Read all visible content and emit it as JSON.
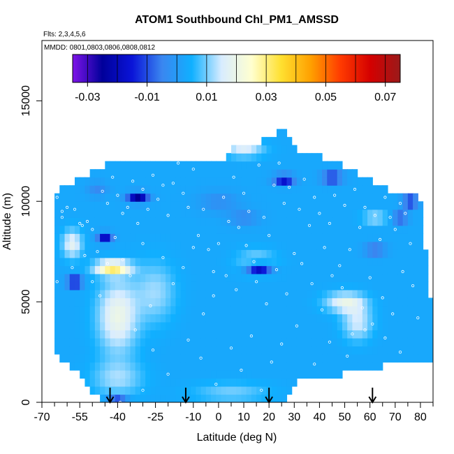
{
  "chart_data": {
    "type": "heatmap",
    "title": "ATOM1 Southbound Chl_PM1_AMSSD",
    "subtitle_flights": "Flts: 2,3,4,5,6",
    "subtitle_dates": "MMDD: 0801,0803,0806,0808,0812",
    "xlabel": "Latitude (deg N)",
    "ylabel": "Altitude (m)",
    "xlim": [
      -70,
      85
    ],
    "ylim": [
      0,
      18000
    ],
    "x_ticks": [
      -70,
      -55,
      -40,
      -25,
      -10,
      0,
      10,
      20,
      30,
      40,
      50,
      60,
      70,
      80
    ],
    "x_tick_labels": [
      "-70",
      "-55",
      "-40",
      "-25",
      "-10",
      "0",
      "10",
      "20",
      "30",
      "40",
      "50",
      "60",
      "70",
      "80"
    ],
    "x_minor_ticks": [
      -65,
      -60,
      -50,
      -45,
      -35,
      -30,
      -20,
      -15,
      -5,
      5,
      15,
      25,
      35,
      45,
      55,
      65,
      75,
      85
    ],
    "y_ticks": [
      0,
      5000,
      10000,
      15000
    ],
    "y_tick_labels": [
      "0",
      "5000",
      "10000",
      "15000"
    ],
    "colorbar": {
      "range": [
        -0.035,
        0.075
      ],
      "tick_values": [
        -0.03,
        -0.01,
        0.01,
        0.03,
        0.05,
        0.07
      ],
      "tick_labels": [
        "-0.03",
        "-0.01",
        "0.01",
        "0.03",
        "0.05",
        "0.07"
      ],
      "segment_boundaries": [
        -0.03,
        -0.02,
        -0.01,
        0.0,
        0.01,
        0.02,
        0.03,
        0.04,
        0.05,
        0.06,
        0.07
      ],
      "colors": [
        "#7e14e8",
        "#00009a",
        "#0a14d8",
        "#3a86f0",
        "#10b0ff",
        "#d8ecff",
        "#ffffd0",
        "#ffe030",
        "#ffa000",
        "#ff3a00",
        "#d40000",
        "#9a1a1a"
      ]
    },
    "background_value": 0.003,
    "column_altitude_extent": [
      {
        "lat": -64,
        "min": 2500,
        "max": 10400
      },
      {
        "lat": -55,
        "min": 1500,
        "max": 11000
      },
      {
        "lat": -45,
        "min": 0,
        "max": 11600
      },
      {
        "lat": -35,
        "min": 0,
        "max": 11900
      },
      {
        "lat": -25,
        "min": 0,
        "max": 12000
      },
      {
        "lat": -15,
        "min": 0,
        "max": 12000
      },
      {
        "lat": -5,
        "min": 0,
        "max": 12000
      },
      {
        "lat": 2,
        "min": 0,
        "max": 12000
      },
      {
        "lat": 5,
        "min": 0,
        "max": 12600
      },
      {
        "lat": 15,
        "min": 0,
        "max": 12600
      },
      {
        "lat": 25,
        "min": 0,
        "max": 13400
      },
      {
        "lat": 32,
        "min": 1500,
        "max": 12400
      },
      {
        "lat": 45,
        "min": 1500,
        "max": 11800
      },
      {
        "lat": 55,
        "min": 1800,
        "max": 11200
      },
      {
        "lat": 65,
        "min": 2000,
        "max": 10500
      },
      {
        "lat": 73,
        "min": 2000,
        "max": 10100
      },
      {
        "lat": 80,
        "min": 2200,
        "max": 10000
      },
      {
        "lat": 84,
        "min": 2200,
        "max": 5000
      }
    ],
    "anomalies": [
      {
        "lat": -40,
        "alt": 4300,
        "slat": 8,
        "salt": 1800,
        "value": 0.02
      },
      {
        "lat": -42,
        "alt": 6700,
        "slat": 7,
        "salt": 350,
        "value": 0.03
      },
      {
        "lat": -58,
        "alt": 7900,
        "slat": 4,
        "salt": 700,
        "value": 0.018
      },
      {
        "lat": -40,
        "alt": 1200,
        "slat": 10,
        "salt": 900,
        "value": 0.012
      },
      {
        "lat": -25,
        "alt": 5500,
        "slat": 8,
        "salt": 1500,
        "value": 0.012
      },
      {
        "lat": 50,
        "alt": 5000,
        "slat": 8,
        "salt": 500,
        "value": 0.018
      },
      {
        "lat": 55,
        "alt": 4000,
        "slat": 6,
        "salt": 900,
        "value": 0.015
      },
      {
        "lat": 62,
        "alt": 9200,
        "slat": 5,
        "salt": 250,
        "value": 0.016
      },
      {
        "lat": 15,
        "alt": 7000,
        "slat": 8,
        "salt": 600,
        "value": 0.012
      },
      {
        "lat": 10,
        "alt": 12600,
        "slat": 8,
        "salt": 400,
        "value": 0.016
      },
      {
        "lat": 5,
        "alt": 500,
        "slat": 15,
        "salt": 500,
        "value": 0.01
      },
      {
        "lat": -57,
        "alt": 6000,
        "slat": 3,
        "salt": 250,
        "value": -0.025
      },
      {
        "lat": -45,
        "alt": 8200,
        "slat": 3,
        "salt": 250,
        "value": -0.02
      },
      {
        "lat": -32,
        "alt": 10200,
        "slat": 4,
        "salt": 250,
        "value": -0.025
      },
      {
        "lat": 16,
        "alt": 6700,
        "slat": 5,
        "salt": 250,
        "value": -0.028
      },
      {
        "lat": -40,
        "alt": 0,
        "slat": 4,
        "salt": 300,
        "value": -0.02
      },
      {
        "lat": 62,
        "alt": 7600,
        "slat": 4,
        "salt": 250,
        "value": -0.012
      },
      {
        "lat": 26,
        "alt": 11100,
        "slat": 4,
        "salt": 250,
        "value": -0.02
      },
      {
        "lat": 45,
        "alt": 11200,
        "slat": 4,
        "salt": 250,
        "value": -0.02
      },
      {
        "lat": 76,
        "alt": 10000,
        "slat": 3,
        "salt": 250,
        "value": -0.02
      },
      {
        "lat": 72,
        "alt": 9200,
        "slat": 3,
        "salt": 250,
        "value": -0.015
      },
      {
        "lat": -48,
        "alt": 10600,
        "slat": 4,
        "salt": 350,
        "value": -0.004
      },
      {
        "lat": 0,
        "alt": 10000,
        "slat": 8,
        "salt": 500,
        "value": -0.003
      },
      {
        "lat": 10,
        "alt": 9200,
        "slat": 6,
        "salt": 400,
        "value": -0.004
      }
    ],
    "sample_points": [
      [
        -64,
        10200
      ],
      [
        -62,
        9500
      ],
      [
        -60,
        9700
      ],
      [
        -57,
        9600
      ],
      [
        -54,
        8800
      ],
      [
        -52,
        9000
      ],
      [
        -50,
        8600
      ],
      [
        -48,
        7500
      ],
      [
        -46,
        10500
      ],
      [
        -44,
        9900
      ],
      [
        -42,
        11200
      ],
      [
        -40,
        10300
      ],
      [
        -38,
        9400
      ],
      [
        -36,
        9700
      ],
      [
        -34,
        11000
      ],
      [
        -32,
        8900
      ],
      [
        -30,
        10600
      ],
      [
        -28,
        9600
      ],
      [
        -26,
        11300
      ],
      [
        -24,
        10100
      ],
      [
        -22,
        10800
      ],
      [
        -20,
        9300
      ],
      [
        -18,
        10900
      ],
      [
        -16,
        11900
      ],
      [
        -14,
        10400
      ],
      [
        -12,
        9700
      ],
      [
        -10,
        11600
      ],
      [
        -8,
        8300
      ],
      [
        -6,
        9600
      ],
      [
        -4,
        7600
      ],
      [
        -2,
        6500
      ],
      [
        0,
        7900
      ],
      [
        2,
        10200
      ],
      [
        4,
        9000
      ],
      [
        6,
        11200
      ],
      [
        8,
        8700
      ],
      [
        10,
        10400
      ],
      [
        12,
        9500
      ],
      [
        14,
        7000
      ],
      [
        16,
        11800
      ],
      [
        18,
        9200
      ],
      [
        20,
        8300
      ],
      [
        22,
        10800
      ],
      [
        24,
        11900
      ],
      [
        26,
        9900
      ],
      [
        28,
        10700
      ],
      [
        30,
        7400
      ],
      [
        32,
        9600
      ],
      [
        34,
        11100
      ],
      [
        36,
        8800
      ],
      [
        38,
        10200
      ],
      [
        40,
        9400
      ],
      [
        42,
        7700
      ],
      [
        44,
        8900
      ],
      [
        46,
        10300
      ],
      [
        48,
        6800
      ],
      [
        50,
        9800
      ],
      [
        52,
        7600
      ],
      [
        54,
        10600
      ],
      [
        56,
        8700
      ],
      [
        58,
        9700
      ],
      [
        60,
        6200
      ],
      [
        62,
        9300
      ],
      [
        64,
        8100
      ],
      [
        66,
        10200
      ],
      [
        68,
        9200
      ],
      [
        70,
        8600
      ],
      [
        72,
        9900
      ],
      [
        74,
        9400
      ],
      [
        76,
        7900
      ],
      [
        -64,
        6000
      ],
      [
        -62,
        9200
      ],
      [
        -58,
        6700
      ],
      [
        -55,
        8900
      ],
      [
        -53,
        7300
      ],
      [
        -50,
        6000
      ],
      [
        -47,
        5300
      ],
      [
        -44,
        6900
      ],
      [
        -41,
        8200
      ],
      [
        -38,
        7100
      ],
      [
        -35,
        6300
      ],
      [
        -30,
        7900
      ],
      [
        -27,
        4800
      ],
      [
        -22,
        7200
      ],
      [
        -18,
        5900
      ],
      [
        -14,
        6700
      ],
      [
        -10,
        7700
      ],
      [
        -6,
        4400
      ],
      [
        -2,
        5300
      ],
      [
        3,
        6300
      ],
      [
        7,
        5600
      ],
      [
        11,
        7800
      ],
      [
        15,
        6000
      ],
      [
        19,
        4900
      ],
      [
        23,
        6600
      ],
      [
        27,
        5400
      ],
      [
        33,
        6900
      ],
      [
        37,
        5900
      ],
      [
        41,
        4600
      ],
      [
        45,
        6300
      ],
      [
        49,
        5700
      ],
      [
        53,
        3400
      ],
      [
        57,
        4700
      ],
      [
        61,
        3900
      ],
      [
        65,
        5200
      ],
      [
        69,
        4400
      ],
      [
        73,
        6500
      ],
      [
        77,
        5800
      ],
      [
        79,
        4200
      ],
      [
        -39,
        0
      ],
      [
        -33,
        3600
      ],
      [
        -26,
        2600
      ],
      [
        -20,
        1400
      ],
      [
        -12,
        3100
      ],
      [
        -7,
        2200
      ],
      [
        -1,
        900
      ],
      [
        5,
        2700
      ],
      [
        9,
        1600
      ],
      [
        13,
        3300
      ],
      [
        17,
        600
      ],
      [
        21,
        2000
      ],
      [
        25,
        2900
      ],
      [
        31,
        3800
      ],
      [
        38,
        1900
      ],
      [
        44,
        3000
      ],
      [
        51,
        2300
      ],
      [
        58,
        3600
      ],
      [
        66,
        3200
      ],
      [
        72,
        2500
      ],
      [
        -30,
        600
      ]
    ],
    "flight_arrows_lat": [
      -43,
      -13,
      20,
      61
    ]
  }
}
